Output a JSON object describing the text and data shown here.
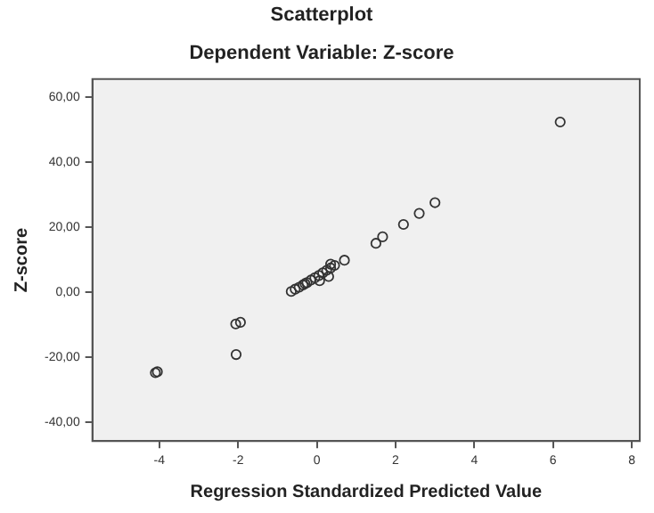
{
  "chart_data": {
    "type": "scatter",
    "title": "Scatterplot",
    "subtitle": "Dependent Variable: Z-score",
    "xlabel": "Regression Standardized Predicted Value",
    "ylabel": "Z-score",
    "x": [
      6.18,
      3.0,
      2.6,
      2.2,
      1.67,
      1.5,
      0.7,
      -4.1,
      -4.05,
      -2.06,
      -1.94,
      -2.05,
      -0.65,
      -0.55,
      -0.45,
      -0.35,
      -0.25,
      -0.15,
      -0.05,
      0.05,
      0.15,
      0.25,
      0.35,
      0.45,
      0.3,
      0.07,
      0.35,
      -0.3
    ],
    "values": [
      52.4,
      27.6,
      24.3,
      20.9,
      17.1,
      15.1,
      9.9,
      -24.7,
      -24.4,
      -9.7,
      -9.2,
      -19.1,
      0.3,
      1.0,
      1.6,
      2.3,
      3.0,
      3.8,
      4.5,
      5.2,
      6.0,
      6.8,
      7.5,
      8.3,
      4.9,
      3.6,
      8.7,
      2.7
    ],
    "color": "#333333",
    "marker": "circle",
    "grid": false,
    "legend": false,
    "xlim": [
      -5.7,
      8.2
    ],
    "xticks": [
      -4,
      -2,
      0,
      2,
      4,
      6,
      8
    ],
    "ylim": [
      -45.7,
      65.6
    ],
    "yticks": [
      {
        "value": -40,
        "label": "-40,00"
      },
      {
        "value": -20,
        "label": "-20,00"
      },
      {
        "value": 0,
        "label": "0,00"
      },
      {
        "value": 20,
        "label": "20,00"
      },
      {
        "value": 40,
        "label": "40,00"
      },
      {
        "value": 60,
        "label": "60,00"
      }
    ]
  }
}
